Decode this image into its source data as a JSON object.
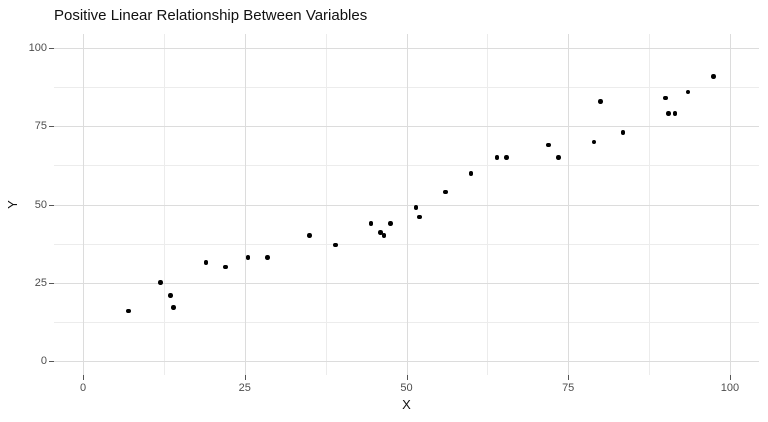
{
  "figure": {
    "background": "#ffffff"
  },
  "chart_data": {
    "type": "scatter",
    "title": "Positive Linear Relationship Between Variables",
    "xlabel": "X",
    "ylabel": "Y",
    "legend": "none",
    "grid": true,
    "xlim": [
      -4.5,
      104.5
    ],
    "ylim": [
      -4.5,
      104.5
    ],
    "x_ticks": [
      0,
      25,
      50,
      75,
      100
    ],
    "y_ticks": [
      0,
      25,
      50,
      75,
      100
    ],
    "x_minor_gridlines": [
      12.5,
      37.5,
      62.5,
      87.5
    ],
    "y_minor_gridlines": [
      12.5,
      37.5,
      62.5,
      87.5
    ],
    "point_color": "#000000",
    "points": [
      [
        7,
        16
      ],
      [
        12,
        25
      ],
      [
        13.5,
        21
      ],
      [
        14,
        17
      ],
      [
        19,
        31.5
      ],
      [
        22,
        30
      ],
      [
        25.5,
        33
      ],
      [
        28.5,
        33
      ],
      [
        35,
        40
      ],
      [
        39,
        37
      ],
      [
        44.5,
        44
      ],
      [
        46,
        41
      ],
      [
        46.5,
        40
      ],
      [
        47.5,
        44
      ],
      [
        51.5,
        49
      ],
      [
        52,
        46
      ],
      [
        56,
        54
      ],
      [
        60,
        60
      ],
      [
        64,
        65
      ],
      [
        65.5,
        65
      ],
      [
        72,
        69
      ],
      [
        73.5,
        65
      ],
      [
        79,
        70
      ],
      [
        80,
        83
      ],
      [
        83.5,
        73
      ],
      [
        90,
        84
      ],
      [
        90.5,
        79
      ],
      [
        91.5,
        79
      ],
      [
        93.5,
        86
      ],
      [
        97.5,
        91
      ]
    ]
  },
  "style": {
    "major_grid_color": "#dcdcdc",
    "minor_grid_color": "#ececec",
    "tick_color": "#555555",
    "tick_label_color": "#4d4d4d",
    "title_color": "#111111"
  }
}
